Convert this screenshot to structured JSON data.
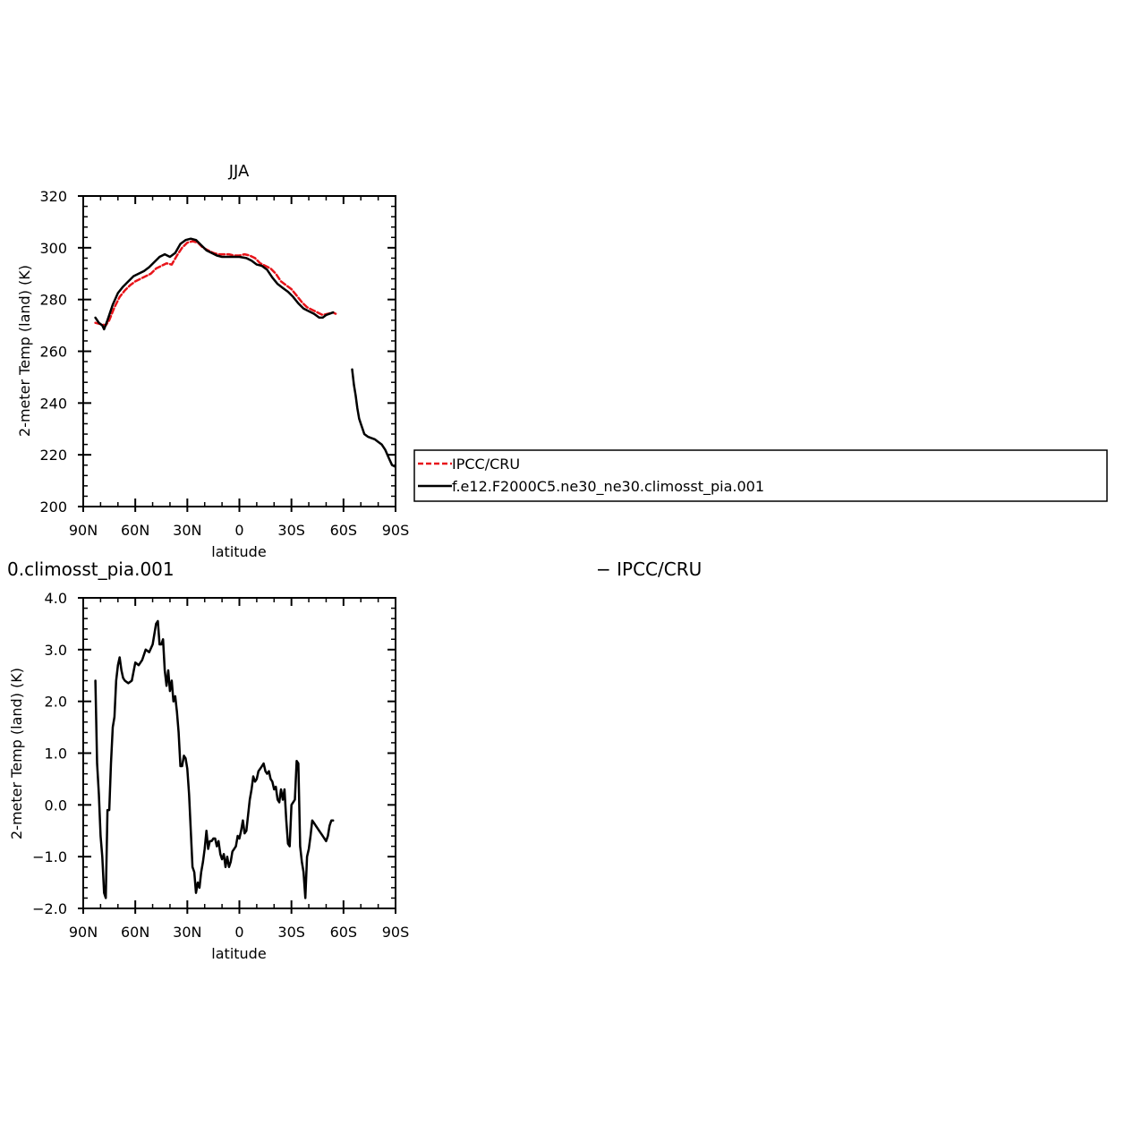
{
  "chart_data": [
    {
      "type": "line",
      "title": "JJA",
      "xlabel": "latitude",
      "ylabel": "2-meter Temp (land) (K)",
      "xlim": [
        90,
        -90
      ],
      "ylim": [
        200,
        320
      ],
      "xticks": [
        90,
        60,
        30,
        0,
        -30,
        -60,
        -90
      ],
      "xtick_labels": [
        "90N",
        "60N",
        "30N",
        "0",
        "30S",
        "60S",
        "90S"
      ],
      "yticks": [
        200,
        220,
        240,
        260,
        280,
        300,
        320
      ],
      "ytick_labels": [
        "200",
        "220",
        "240",
        "260",
        "280",
        "300",
        "320"
      ],
      "legend_placement": "right",
      "series": [
        {
          "name": "IPCC/CRU",
          "color": "#e8141a",
          "dash": true,
          "x": [
            83,
            80,
            77,
            75,
            72,
            69,
            66,
            63,
            60,
            57,
            54,
            51,
            48,
            45,
            42,
            39,
            36,
            33,
            30,
            27,
            24,
            21,
            18,
            15,
            12,
            9,
            6,
            3,
            0,
            -3,
            -6,
            -9,
            -12,
            -15,
            -18,
            -21,
            -24,
            -27,
            -30,
            -33,
            -36,
            -39,
            -42,
            -45,
            -48,
            -51,
            -54,
            -55.5
          ],
          "y": [
            271,
            270.5,
            270,
            272,
            277,
            281,
            283.5,
            285.5,
            287,
            288,
            289,
            290,
            292,
            293,
            294,
            293.5,
            297,
            300,
            302,
            302.5,
            302,
            300,
            299,
            298,
            297.5,
            297.5,
            297.5,
            297,
            297,
            297.5,
            297,
            296,
            294,
            293,
            292,
            290,
            287,
            285.5,
            284,
            281.5,
            279,
            277,
            276,
            275,
            274,
            274.5,
            275,
            274.5
          ]
        },
        {
          "name": "f.e12.F2000C5.ne30_ne30.climosst_pia.001",
          "color": "#000000",
          "dash": false,
          "x": [
            83,
            81,
            79,
            78,
            76,
            73,
            70,
            67,
            64,
            61,
            58,
            55,
            52,
            49,
            46,
            43,
            40,
            37,
            34,
            31,
            28,
            25,
            22,
            19,
            16,
            13,
            10,
            7,
            4,
            0,
            -4,
            -7,
            -10,
            -13,
            -16,
            -19,
            -22,
            -25,
            -28,
            -31,
            -34,
            -37,
            -40,
            -43,
            -46,
            -48,
            -50,
            -52,
            -54
          ],
          "y": [
            273,
            271,
            270,
            268.5,
            272,
            278,
            282.5,
            285,
            287,
            289,
            290,
            291,
            292.5,
            294.5,
            296.5,
            297.5,
            296.5,
            298,
            301.5,
            303,
            303.5,
            303,
            301,
            299,
            298,
            297,
            296.5,
            296.5,
            296.5,
            296.5,
            296,
            295,
            293.5,
            293,
            291.5,
            288.5,
            286,
            284.5,
            283,
            281,
            278.5,
            276.5,
            275.5,
            274.5,
            273,
            273,
            274,
            274.5,
            275
          ]
        },
        {
          "name": "f.e12.F2000C5.ne30_ne30.climosst_pia.001",
          "color": "#000000",
          "dash": false,
          "x": [
            -65,
            -66,
            -67,
            -68,
            -69,
            -70,
            -71,
            -72,
            -74,
            -76,
            -78,
            -80,
            -82,
            -84,
            -86,
            -88,
            -89.5
          ],
          "y": [
            253,
            247,
            243,
            238,
            234,
            232,
            230,
            228,
            227,
            226.5,
            226,
            225,
            224,
            222,
            219,
            216,
            215.5
          ]
        }
      ]
    },
    {
      "type": "line",
      "title": "0.climosst_pia.001",
      "right_title": "− IPCC/CRU",
      "xlabel": "latitude",
      "ylabel": "2-meter Temp (land) (K)",
      "xlim": [
        90,
        -90
      ],
      "ylim": [
        -2.0,
        4.0
      ],
      "xticks": [
        90,
        60,
        30,
        0,
        -30,
        -60,
        -90
      ],
      "xtick_labels": [
        "90N",
        "60N",
        "30N",
        "0",
        "30S",
        "60S",
        "90S"
      ],
      "yticks": [
        -2.0,
        -1.0,
        0.0,
        1.0,
        2.0,
        3.0,
        4.0
      ],
      "ytick_labels": [
        "−2.0",
        "−1.0",
        "0.0",
        "1.0",
        "2.0",
        "3.0",
        "4.0"
      ],
      "series": [
        {
          "color": "#000000",
          "x": [
            83,
            82,
            81,
            80,
            79,
            78,
            77,
            76,
            75,
            74,
            73,
            72,
            71,
            70,
            69,
            68,
            67,
            66,
            64,
            62,
            60,
            58,
            56,
            54,
            52,
            50,
            48,
            47,
            46,
            45,
            44,
            43,
            42,
            41,
            40,
            39,
            38,
            37,
            36,
            35,
            34,
            33,
            32,
            31,
            30,
            29,
            28,
            27,
            26,
            25,
            24,
            23,
            22,
            21,
            20,
            19,
            18,
            17,
            16,
            15,
            14,
            13,
            12,
            11,
            10,
            9,
            8,
            7,
            6,
            5,
            4,
            3,
            2,
            1,
            0,
            -1,
            -2,
            -3,
            -4,
            -5,
            -6,
            -7,
            -8,
            -9,
            -10,
            -11,
            -12,
            -13,
            -14,
            -15,
            -16,
            -17,
            -18,
            -19,
            -20,
            -21,
            -22,
            -23,
            -24,
            -25,
            -26,
            -27,
            -28,
            -29,
            -30,
            -31,
            -32,
            -33,
            -34,
            -35,
            -36,
            -37,
            -38,
            -39,
            -40,
            -41,
            -42,
            -43,
            -44,
            -45,
            -46,
            -47,
            -48,
            -49,
            -50,
            -51,
            -52,
            -53,
            -54
          ],
          "y": [
            2.4,
            0.8,
            0.2,
            -0.6,
            -1.0,
            -1.7,
            -1.8,
            -0.1,
            -0.1,
            0.8,
            1.5,
            1.7,
            2.4,
            2.7,
            2.85,
            2.6,
            2.45,
            2.4,
            2.35,
            2.4,
            2.75,
            2.7,
            2.8,
            3.0,
            2.95,
            3.1,
            3.5,
            3.55,
            3.1,
            3.1,
            3.2,
            2.6,
            2.3,
            2.6,
            2.2,
            2.4,
            2.0,
            2.1,
            1.8,
            1.4,
            0.75,
            0.75,
            0.95,
            0.9,
            0.7,
            0.2,
            -0.5,
            -1.2,
            -1.3,
            -1.7,
            -1.5,
            -1.6,
            -1.3,
            -1.1,
            -0.85,
            -0.5,
            -0.85,
            -0.7,
            -0.7,
            -0.65,
            -0.65,
            -0.8,
            -0.7,
            -0.95,
            -1.05,
            -0.95,
            -1.2,
            -1.0,
            -1.2,
            -1.1,
            -0.9,
            -0.85,
            -0.8,
            -0.6,
            -0.65,
            -0.5,
            -0.3,
            -0.55,
            -0.5,
            -0.2,
            0.1,
            0.3,
            0.55,
            0.45,
            0.5,
            0.65,
            0.7,
            0.75,
            0.8,
            0.65,
            0.6,
            0.65,
            0.5,
            0.45,
            0.3,
            0.35,
            0.1,
            0.05,
            0.3,
            0.1,
            0.3,
            -0.3,
            -0.75,
            -0.8,
            0.0,
            0.05,
            0.1,
            0.85,
            0.8,
            -0.8,
            -1.1,
            -1.3,
            -1.8,
            -1.0,
            -0.85,
            -0.6,
            -0.3,
            -0.35,
            -0.4,
            -0.45,
            -0.5,
            -0.55,
            -0.6,
            -0.65,
            -0.7,
            -0.6,
            -0.4,
            -0.3,
            -0.3
          ]
        }
      ]
    }
  ],
  "legend": {
    "items": [
      {
        "label": "IPCC/CRU",
        "color": "#e8141a",
        "dash": true
      },
      {
        "label": "f.e12.F2000C5.ne30_ne30.climosst_pia.001",
        "color": "#000000",
        "dash": false
      }
    ]
  }
}
